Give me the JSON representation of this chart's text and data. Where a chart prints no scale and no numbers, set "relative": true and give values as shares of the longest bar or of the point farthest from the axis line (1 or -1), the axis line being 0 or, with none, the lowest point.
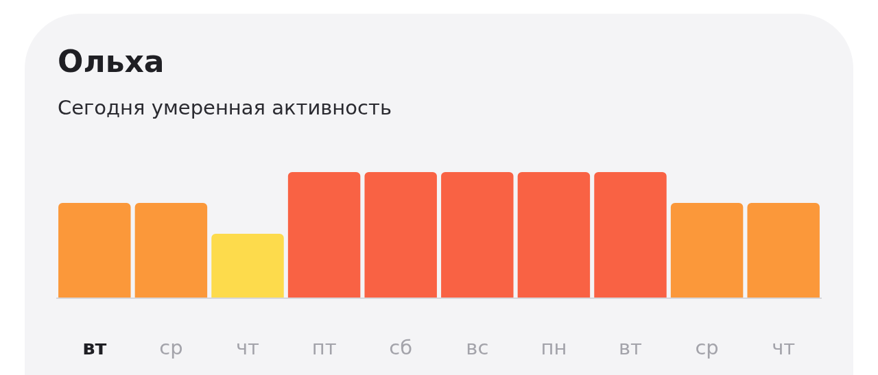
{
  "chart_data": {
    "type": "bar",
    "title": "Ольха",
    "subtitle": "Сегодня умеренная активность",
    "relative": true,
    "categories": [
      "вт",
      "ср",
      "чт",
      "пт",
      "сб",
      "вс",
      "пн",
      "вт",
      "ср",
      "чт"
    ],
    "values": [
      0.754,
      0.754,
      0.508,
      1,
      1,
      1,
      1,
      1,
      0.754,
      0.754
    ],
    "colors": [
      "#fb983a",
      "#fb983a",
      "#fddb4c",
      "#f96244",
      "#f96244",
      "#f96244",
      "#f96244",
      "#f96244",
      "#fb983a",
      "#fb983a"
    ],
    "grid": false
  }
}
